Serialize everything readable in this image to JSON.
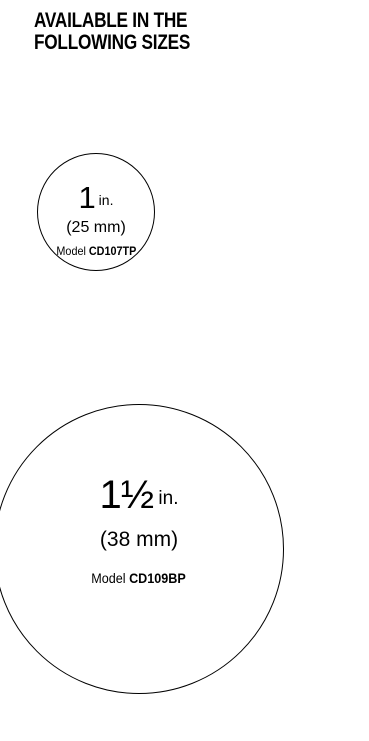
{
  "heading": {
    "line1": "AVAILABLE IN THE",
    "line2": "FOLLOWING SIZES"
  },
  "sizes": [
    {
      "size_number": "1",
      "size_unit": "in.",
      "metric": "(25 mm)",
      "model_prefix": "Model",
      "model_code": "CD107TP"
    },
    {
      "size_number": "1½",
      "size_unit": "in.",
      "metric": "(38 mm)",
      "model_prefix": "Model",
      "model_code": "CD109BP"
    }
  ]
}
